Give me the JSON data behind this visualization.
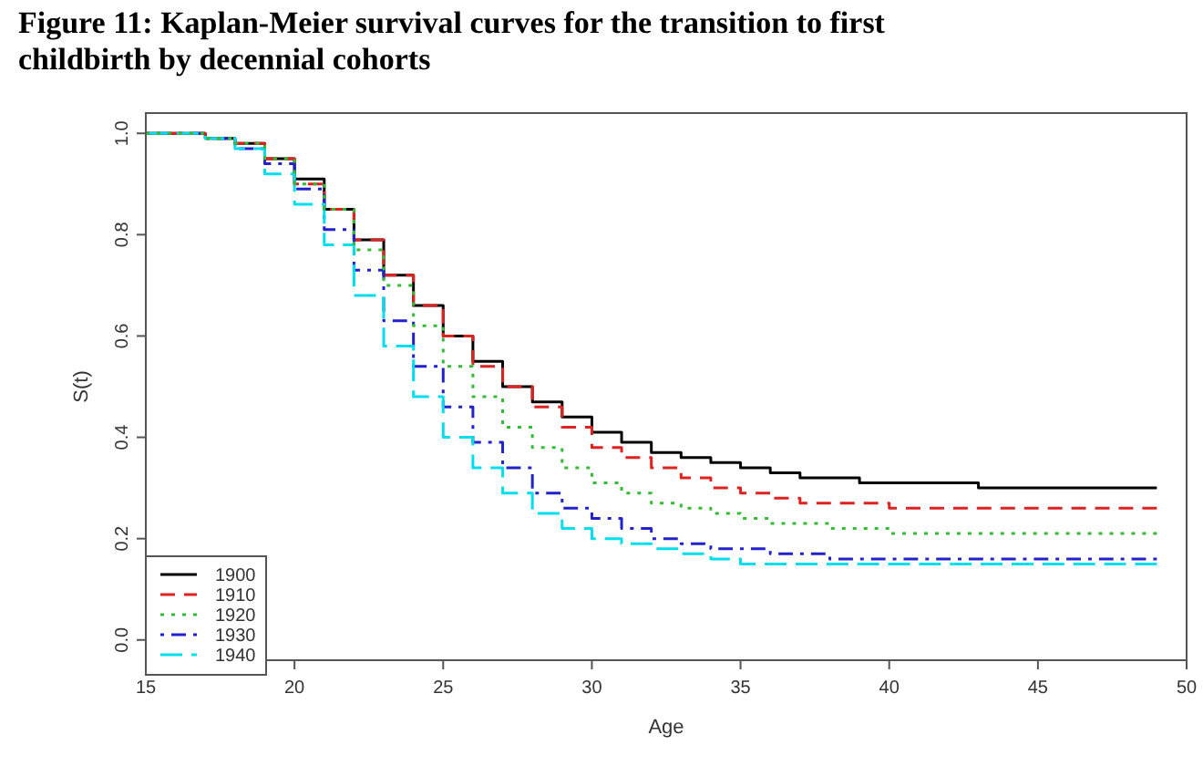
{
  "chart_data": {
    "type": "step",
    "title": "Figure 11: Kaplan-Meier survival curves for the transition to first childbirth by decennial cohorts",
    "xlabel": "Age",
    "ylabel": "S(t)",
    "x": [
      15,
      16,
      17,
      18,
      19,
      20,
      21,
      22,
      23,
      24,
      25,
      26,
      27,
      28,
      29,
      30,
      31,
      32,
      33,
      34,
      35,
      36,
      37,
      38,
      39,
      40,
      41,
      42,
      43,
      44,
      45,
      46,
      47,
      48,
      49
    ],
    "series": [
      {
        "name": "1900",
        "color": "#000000",
        "line_style": "solid",
        "values": [
          1.0,
          1.0,
          0.99,
          0.98,
          0.95,
          0.91,
          0.85,
          0.79,
          0.72,
          0.66,
          0.6,
          0.55,
          0.5,
          0.47,
          0.44,
          0.41,
          0.39,
          0.37,
          0.36,
          0.35,
          0.34,
          0.33,
          0.32,
          0.32,
          0.31,
          0.31,
          0.31,
          0.31,
          0.3,
          0.3,
          0.3,
          0.3,
          0.3,
          0.3,
          0.3
        ]
      },
      {
        "name": "1910",
        "color": "#dd2222",
        "line_style": "dashed",
        "values": [
          1.0,
          1.0,
          0.99,
          0.98,
          0.95,
          0.9,
          0.85,
          0.79,
          0.72,
          0.66,
          0.6,
          0.54,
          0.5,
          0.46,
          0.42,
          0.38,
          0.36,
          0.34,
          0.32,
          0.3,
          0.29,
          0.28,
          0.27,
          0.27,
          0.27,
          0.26,
          0.26,
          0.26,
          0.26,
          0.26,
          0.26,
          0.26,
          0.26,
          0.26,
          0.26
        ]
      },
      {
        "name": "1920",
        "color": "#33bb33",
        "line_style": "dotted",
        "values": [
          1.0,
          1.0,
          0.99,
          0.98,
          0.95,
          0.9,
          0.85,
          0.77,
          0.7,
          0.62,
          0.54,
          0.48,
          0.42,
          0.38,
          0.34,
          0.31,
          0.29,
          0.27,
          0.26,
          0.25,
          0.24,
          0.23,
          0.23,
          0.22,
          0.22,
          0.21,
          0.21,
          0.21,
          0.21,
          0.21,
          0.21,
          0.21,
          0.21,
          0.21,
          0.21
        ]
      },
      {
        "name": "1930",
        "color": "#2222cc",
        "line_style": "dashdot",
        "values": [
          1.0,
          1.0,
          0.99,
          0.97,
          0.94,
          0.89,
          0.81,
          0.73,
          0.63,
          0.54,
          0.46,
          0.39,
          0.34,
          0.29,
          0.26,
          0.24,
          0.22,
          0.2,
          0.19,
          0.18,
          0.18,
          0.17,
          0.17,
          0.16,
          0.16,
          0.16,
          0.16,
          0.16,
          0.16,
          0.16,
          0.16,
          0.16,
          0.16,
          0.16,
          0.16
        ]
      },
      {
        "name": "1940",
        "color": "#00dded",
        "line_style": "longdash",
        "values": [
          1.0,
          1.0,
          0.99,
          0.97,
          0.92,
          0.86,
          0.78,
          0.68,
          0.58,
          0.48,
          0.4,
          0.34,
          0.29,
          0.25,
          0.22,
          0.2,
          0.19,
          0.18,
          0.17,
          0.16,
          0.15,
          0.15,
          0.15,
          0.15,
          0.15,
          0.15,
          0.15,
          0.15,
          0.15,
          0.15,
          0.15,
          0.15,
          0.15,
          0.15,
          0.15
        ]
      }
    ],
    "xlim": [
      15,
      50
    ],
    "ylim": [
      -0.04,
      1.04
    ],
    "xticks": [
      15,
      20,
      25,
      30,
      35,
      40,
      45,
      50
    ],
    "yticks": [
      {
        "value": 0,
        "label": "0.0"
      },
      0.2,
      0.4,
      0.6,
      0.8,
      {
        "value": 1,
        "label": "1.0"
      }
    ],
    "legend": "bottom left"
  }
}
